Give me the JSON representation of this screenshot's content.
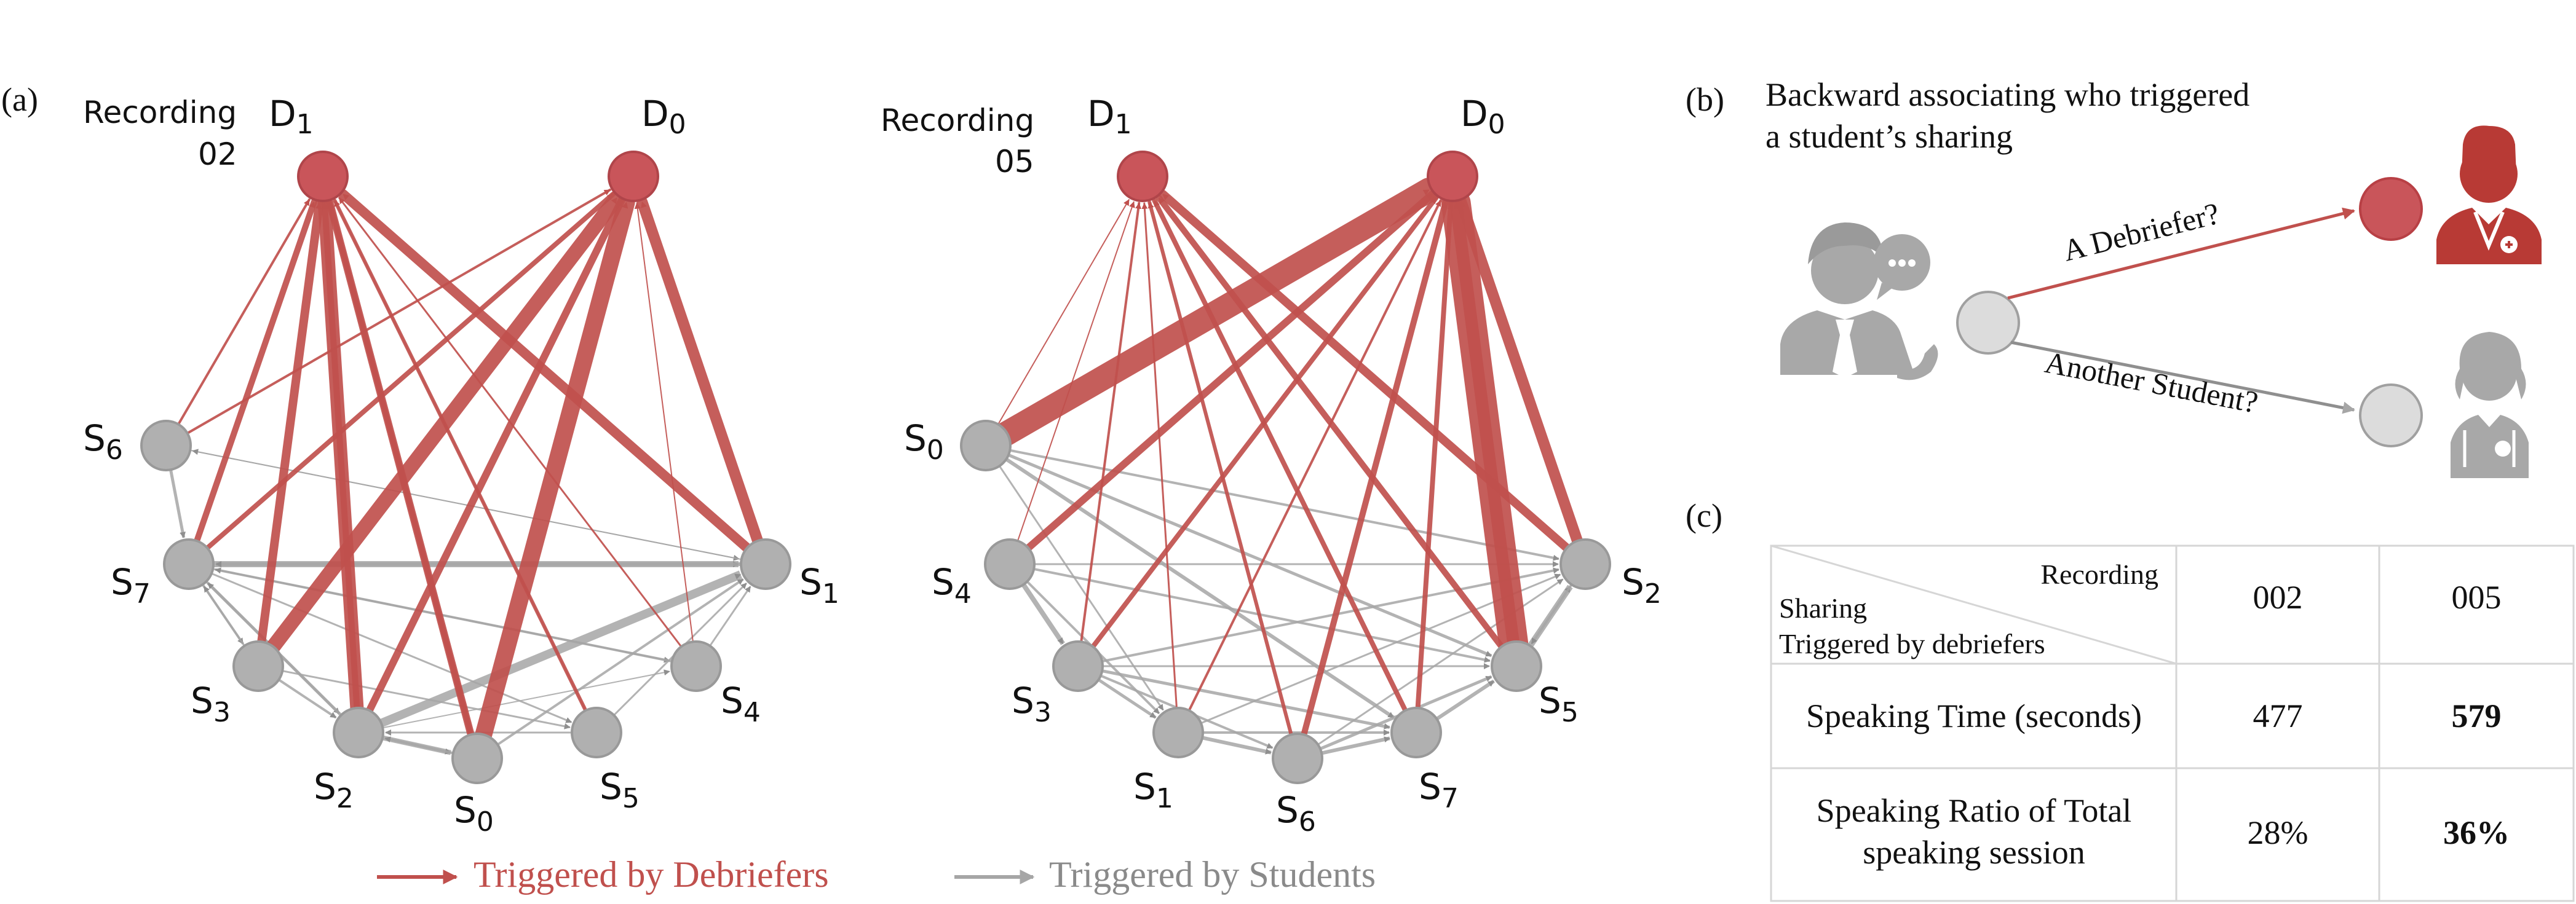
{
  "colors": {
    "debriefer": "#c0504d",
    "debriefer_node": "#c9555a",
    "student": "#a6a6a6",
    "student_node": "#b0b0b0",
    "light_node": "#dcdcdc",
    "icon_gray": "#a8a8a8",
    "icon_red": "#b83a35"
  },
  "panel_a": {
    "label": "(a)",
    "graphs": [
      {
        "recording_word": "Recording",
        "recording_number": "02",
        "debriefers": [
          "D1",
          "D0"
        ],
        "students": [
          "S6",
          "S7",
          "S3",
          "S2",
          "S0",
          "S5",
          "S4",
          "S1"
        ]
      },
      {
        "recording_word": "Recording",
        "recording_number": "05",
        "debriefers": [
          "D1",
          "D0"
        ],
        "students": [
          "S0",
          "S4",
          "S3",
          "S1",
          "S6",
          "S7",
          "S5",
          "S2"
        ]
      }
    ],
    "legend": {
      "debriefers": "Triggered by Debriefers",
      "students": "Triggered by Students"
    }
  },
  "panel_b": {
    "label": "(b)",
    "title_line1": "Backward associating who triggered",
    "title_line2": "a student’s sharing",
    "arrow_top_label": "A Debriefer?",
    "arrow_bottom_label": "Another Student?",
    "icons": [
      "speaking-student-icon",
      "doctor-icon",
      "nurse-icon"
    ]
  },
  "panel_c": {
    "label": "(c)",
    "header_col_label": "Recording",
    "header_row_label_line1": "Sharing",
    "header_row_label_line2": "Triggered by debriefers",
    "columns": [
      "002",
      "005"
    ],
    "rows": [
      {
        "label_line1": "Speaking Time (seconds)",
        "label_line2": "",
        "values": [
          "477",
          "579"
        ],
        "bold": [
          false,
          true
        ]
      },
      {
        "label_line1": "Speaking Ratio of Total",
        "label_line2": "speaking session",
        "values": [
          "28%",
          "36%"
        ],
        "bold": [
          false,
          true
        ]
      }
    ]
  }
}
